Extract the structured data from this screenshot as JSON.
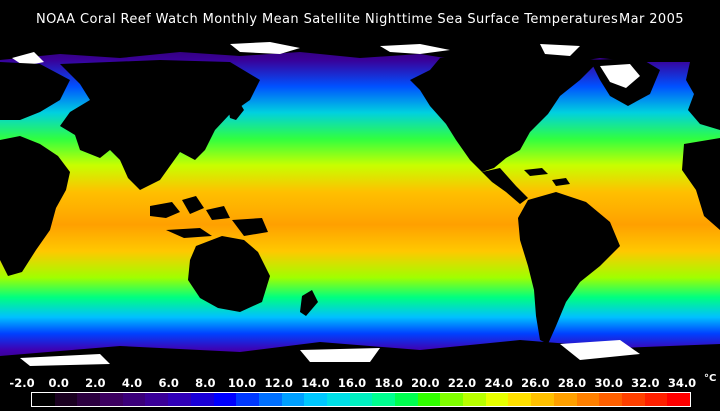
{
  "title": {
    "main": "NOAA Coral Reef Watch Monthly Mean Satellite Nighttime Sea Surface Temperatures",
    "date": "Mar 2005"
  },
  "colorbar": {
    "ticks": [
      "-2.0",
      "0.0",
      "2.0",
      "4.0",
      "6.0",
      "8.0",
      "10.0",
      "12.0",
      "14.0",
      "16.0",
      "18.0",
      "20.0",
      "22.0",
      "24.0",
      "26.0",
      "28.0",
      "30.0",
      "32.0",
      "34.0"
    ],
    "unit": "°C",
    "swatches": [
      "#000000",
      "#1a0020",
      "#2c0040",
      "#3c0060",
      "#3b007a",
      "#3a0098",
      "#3000b8",
      "#1a00d8",
      "#0000ff",
      "#0038ff",
      "#0070ff",
      "#00a0ff",
      "#00c8ff",
      "#00e0e8",
      "#00f0c0",
      "#00ff90",
      "#00ff50",
      "#30ff00",
      "#80ff00",
      "#b8ff00",
      "#e8ff00",
      "#ffe000",
      "#ffc000",
      "#ffa000",
      "#ff8000",
      "#ff6000",
      "#ff4000",
      "#ff2000",
      "#ff0000"
    ]
  },
  "colors": {
    "land": "#000000",
    "ice": "#ffffff",
    "sea_warm": "#ffa000",
    "sea_cold": "#3a0090"
  }
}
